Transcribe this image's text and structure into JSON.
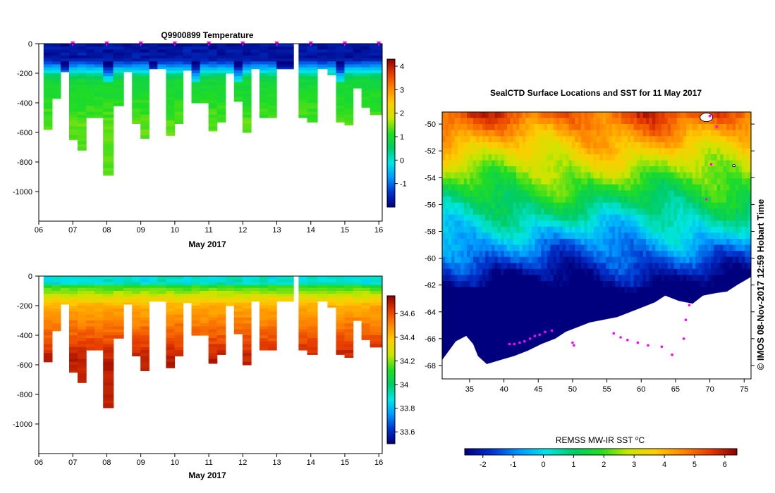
{
  "colors": {
    "background": "#ffffff",
    "axis": "#000000",
    "profile_marker": "#ff00ff",
    "land": "#ffffff"
  },
  "colormap_stops": [
    "#00007f",
    "#0033cc",
    "#0099ff",
    "#00e5e5",
    "#00cc66",
    "#22dd22",
    "#c8e600",
    "#ffcc00",
    "#ff8800",
    "#e63c00",
    "#8b0000"
  ],
  "chart_data": [
    {
      "type": "heatmap",
      "id": "temperature_section",
      "title": "Q9900899  Temperature",
      "xlabel": "May 2017",
      "ylabel": "",
      "x_tick_labels": [
        "06",
        "07",
        "08",
        "09",
        "10",
        "11",
        "12",
        "13",
        "14",
        "15",
        "16"
      ],
      "x_ticks": [
        6,
        7,
        8,
        9,
        10,
        11,
        12,
        13,
        14,
        15,
        16
      ],
      "xlim": [
        6,
        16.1
      ],
      "y_tick_labels": [
        "0",
        "-200",
        "-400",
        "-600",
        "-800",
        "-1000"
      ],
      "y_ticks": [
        0,
        -200,
        -400,
        -600,
        -800,
        -1000
      ],
      "ylim": [
        -1200,
        0
      ],
      "colorbar": {
        "min": -2.0,
        "max": 4.3,
        "tick_labels": [
          "-1",
          "0",
          "1",
          "2",
          "3",
          "4"
        ],
        "ticks": [
          -1,
          0,
          1,
          2,
          3,
          4
        ]
      },
      "profile_days": [
        6.4,
        6.65,
        6.9,
        7.15,
        7.4,
        7.65,
        7.9,
        8.15,
        8.45,
        8.75,
        9.0,
        9.25,
        9.5,
        9.75,
        10.0,
        10.25,
        10.5,
        10.75,
        11.0,
        11.25,
        11.5,
        11.75,
        12.0,
        12.25,
        12.5,
        12.75,
        13.0,
        13.25,
        13.9,
        14.15,
        14.45,
        14.75,
        15.0,
        15.25,
        15.5,
        15.75,
        16.0
      ],
      "profile_max_depth": [
        580,
        370,
        190,
        650,
        720,
        500,
        500,
        890,
        420,
        190,
        540,
        640,
        170,
        170,
        620,
        540,
        180,
        400,
        400,
        590,
        530,
        200,
        390,
        600,
        170,
        500,
        500,
        170,
        500,
        530,
        170,
        210,
        530,
        550,
        300,
        430,
        480
      ],
      "surface_markers_days": [
        7,
        8,
        9,
        10,
        11,
        12,
        13,
        14,
        15,
        16
      ],
      "value_range_note": "near-freezing surface layer over warmer 1-1.5 deg deep water"
    },
    {
      "type": "heatmap",
      "id": "salinity_section",
      "title": "",
      "xlabel": "May 2017",
      "ylabel": "",
      "x_tick_labels": [
        "06",
        "07",
        "08",
        "09",
        "10",
        "11",
        "12",
        "13",
        "14",
        "15",
        "16"
      ],
      "x_ticks": [
        6,
        7,
        8,
        9,
        10,
        11,
        12,
        13,
        14,
        15,
        16
      ],
      "xlim": [
        6,
        16.1
      ],
      "y_tick_labels": [
        "0",
        "-200",
        "-400",
        "-600",
        "-800",
        "-1000"
      ],
      "y_ticks": [
        0,
        -200,
        -400,
        -600,
        -800,
        -1000
      ],
      "ylim": [
        -1200,
        0
      ],
      "colorbar": {
        "min": 33.5,
        "max": 34.75,
        "tick_labels": [
          "33.6",
          "33.8",
          "34",
          "34.2",
          "34.4",
          "34.6"
        ],
        "ticks": [
          33.6,
          33.8,
          34.0,
          34.2,
          34.4,
          34.6
        ]
      }
    },
    {
      "type": "heatmap",
      "id": "sst_map",
      "title": "SealCTD Surface Locations and SST for 11 May 2017",
      "xlabel": "",
      "ylabel": "",
      "x_tick_labels": [
        "35",
        "40",
        "45",
        "50",
        "55",
        "60",
        "65",
        "70",
        "75"
      ],
      "x_ticks": [
        35,
        40,
        45,
        50,
        55,
        60,
        65,
        70,
        75
      ],
      "xlim": [
        31,
        76
      ],
      "y_tick_labels": [
        "-50",
        "-52",
        "-54",
        "-56",
        "-58",
        "-60",
        "-62",
        "-64",
        "-66",
        "-68"
      ],
      "y_ticks": [
        -50,
        -52,
        -54,
        -56,
        -58,
        -60,
        -62,
        -64,
        -66,
        -68
      ],
      "ylim": [
        -69,
        -49.1
      ],
      "colorbar": {
        "label": "REMSS MW-IR SST ⁰C",
        "min": -2.6,
        "max": 6.4,
        "tick_labels": [
          "-2",
          "-1",
          "0",
          "1",
          "2",
          "3",
          "4",
          "5",
          "6"
        ],
        "ticks": [
          -2,
          -1,
          0,
          1,
          2,
          3,
          4,
          5,
          6
        ]
      },
      "seal_track": [
        [
          40.8,
          -66.4
        ],
        [
          41.5,
          -66.4
        ],
        [
          42.3,
          -66.3
        ],
        [
          43.0,
          -66.2
        ],
        [
          43.8,
          -66.0
        ],
        [
          44.5,
          -65.8
        ],
        [
          45.2,
          -65.7
        ],
        [
          46.0,
          -65.5
        ],
        [
          47.0,
          -65.4
        ],
        [
          50.0,
          -66.3
        ],
        [
          50.2,
          -66.5
        ],
        [
          56.0,
          -65.6
        ],
        [
          57.0,
          -65.9
        ],
        [
          58.0,
          -66.1
        ],
        [
          59.5,
          -66.3
        ],
        [
          61.0,
          -66.5
        ],
        [
          63.0,
          -66.6
        ],
        [
          64.5,
          -67.2
        ],
        [
          66.2,
          -66.0
        ],
        [
          66.5,
          -64.6
        ],
        [
          67.0,
          -63.5
        ],
        [
          69.5,
          -55.6
        ],
        [
          70.2,
          -53.0
        ],
        [
          71.0,
          -50.2
        ],
        [
          70.0,
          -49.4
        ]
      ]
    }
  ],
  "credit": "© IMOS 08-Nov-2017 12:59 Hobart Time"
}
